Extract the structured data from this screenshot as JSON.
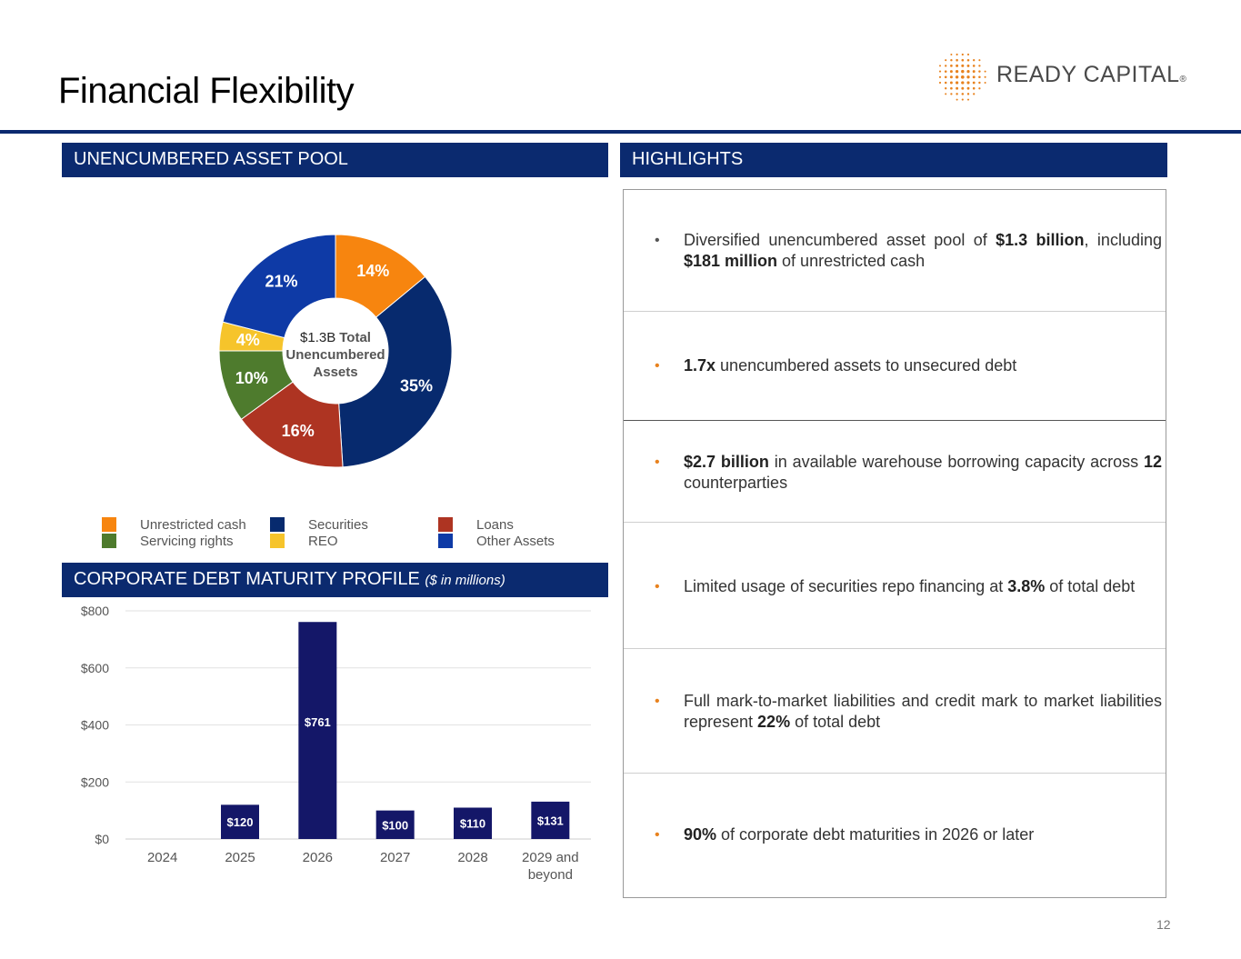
{
  "page": {
    "title": "Financial Flexibility",
    "page_number": "12"
  },
  "logo": {
    "text": "READY CAPITAL",
    "reg": "®",
    "color": "#e8821e"
  },
  "headers": {
    "asset_pool": "UNENCUMBERED ASSET POOL",
    "highlights": "HIGHLIGHTS",
    "debt": "CORPORATE DEBT MATURITY PROFILE",
    "debt_sub": "($ in millions)"
  },
  "colors": {
    "navy": "#0b2a6f",
    "orange": "#f7850f",
    "securities": "#072a6e",
    "loans": "#ae3422",
    "servicing": "#4e7b2d",
    "reo": "#f6c42b",
    "other": "#0e3aa6",
    "bar": "#141768",
    "bullet": "#e8821e"
  },
  "chart_data": [
    {
      "type": "pie",
      "center_label": [
        "$1.3B",
        "Total",
        "Unencumbered",
        "Assets"
      ],
      "slices": [
        {
          "name": "Unrestricted cash",
          "value": 14,
          "label": "14%",
          "color": "#f7850f"
        },
        {
          "name": "Securities",
          "value": 35,
          "label": "35%",
          "color": "#072a6e"
        },
        {
          "name": "Loans",
          "value": 16,
          "label": "16%",
          "color": "#ae3422"
        },
        {
          "name": "Servicing rights",
          "value": 10,
          "label": "10%",
          "color": "#4e7b2d"
        },
        {
          "name": "REO",
          "value": 4,
          "label": "4%",
          "color": "#f6c42b"
        },
        {
          "name": "Other Assets",
          "value": 21,
          "label": "21%",
          "color": "#0e3aa6"
        }
      ],
      "legend": [
        "Unrestricted cash",
        "Securities",
        "Loans",
        "Servicing rights",
        "REO",
        "Other Assets"
      ],
      "legend_position": "bottom"
    },
    {
      "type": "bar",
      "categories": [
        "2024",
        "2025",
        "2026",
        "2027",
        "2028",
        "2029 and beyond"
      ],
      "values": [
        0,
        120,
        761,
        100,
        110,
        131
      ],
      "labels": [
        "",
        "$120",
        "$761",
        "$100",
        "$110",
        "$131"
      ],
      "yticks": [
        "$0",
        "$200",
        "$400",
        "$600",
        "$800"
      ],
      "ylim": [
        0,
        800
      ],
      "grid": true
    }
  ],
  "highlights": [
    {
      "bullet": "•",
      "html": "Diversified unencumbered asset pool of <b>$1.3 billion</b>, including <b>$181 million</b> of unrestricted cash"
    },
    {
      "bullet": "•",
      "html": "<b>1.7x</b> unencumbered assets to unsecured debt"
    },
    {
      "bullet": "•",
      "html": "<b>$2.7 billion</b> in available warehouse borrowing capacity across <b>12</b> counterparties"
    },
    {
      "bullet": "•",
      "html": "Limited usage of securities repo financing at <b>3.8%</b> of total debt"
    },
    {
      "bullet": "•",
      "html": "Full mark-to-market liabilities and credit mark to market liabilities represent <b>22%</b> of total debt"
    },
    {
      "bullet": "•",
      "html": "<b>90%</b> of corporate debt maturities in 2026 or later"
    }
  ]
}
